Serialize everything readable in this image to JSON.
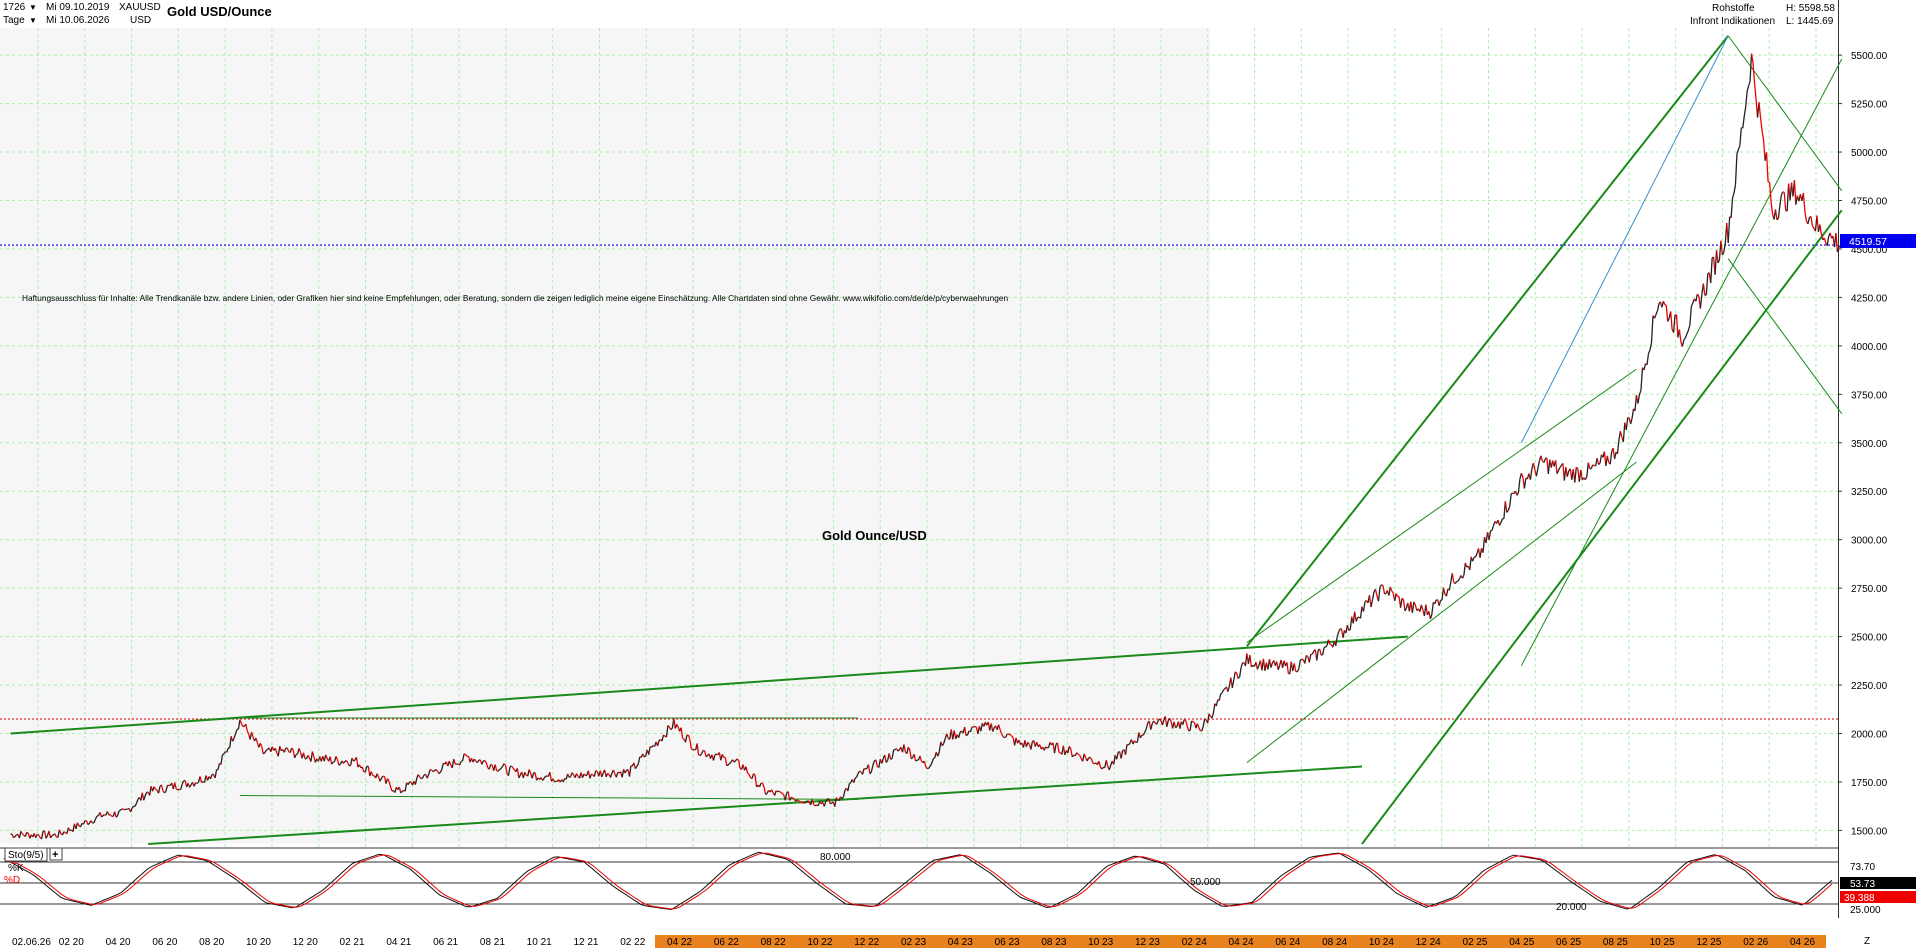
{
  "header": {
    "bars": "1726",
    "start_date": "Mi 09.10.2019",
    "symbol": "XAUUSD",
    "period": "Tage",
    "end_date": "Mi 10.06.2026",
    "currency": "USD",
    "title": "Gold USD/Ounce",
    "category": "Rohstoffe",
    "high_label": "H: 5598.58",
    "source": "Infront Indikationen",
    "low_label": "L: 1445.69"
  },
  "disclaimer": "Haftungsausschluss für Inhalte: Alle Trendkanäle bzw. andere Linien, oder Grafiken hier sind keine Empfehlungen, oder Beratung, sondern die zeigen lediglich meine eigene Einschätzung. Alle Chartdaten sind ohne Gewähr. www.wikifolio.com/de/de/p/cyberwaehrungen",
  "center_label": "Gold Ounce/USD",
  "price_tag": "4519.57",
  "colors": {
    "up": "#222222",
    "down": "#ee0000",
    "trend": "#1a8a1a",
    "price_tag_bg": "#0000ee",
    "ref_line": "#e03030",
    "grid": "#a8f0a8",
    "date_band": "#e8821e"
  },
  "chart_data": {
    "type": "line",
    "y_axis_ticks": [
      1500,
      1750,
      2000,
      2250,
      2500,
      2750,
      3000,
      3250,
      3500,
      3750,
      4000,
      4250,
      4500,
      4750,
      5000,
      5250,
      5500
    ],
    "y_axis_labels": [
      "1500.00",
      "1750.00",
      "2000.00",
      "2250.00",
      "2500.00",
      "2750.00",
      "3000.00",
      "3250.00",
      "3500.00",
      "3750.00",
      "4000.00",
      "4250.00",
      "4500.00",
      "4750.00",
      "5000.00",
      "5250.00",
      "5500.00"
    ],
    "ylim": [
      1430,
      5640
    ],
    "log_scale": false,
    "x_tick_labels": [
      "02.06.26",
      "02 20",
      "04 20",
      "06 20",
      "08 20",
      "10 20",
      "12 20",
      "02 21",
      "04 21",
      "06 21",
      "08 21",
      "10 21",
      "12 21",
      "02 22",
      "04 22",
      "06 22",
      "08 22",
      "10 22",
      "12 22",
      "02 23",
      "04 23",
      "06 23",
      "08 23",
      "10 23",
      "12 23",
      "02 24",
      "04 24",
      "06 24",
      "08 24",
      "10 24",
      "12 24",
      "02 25",
      "04 25",
      "06 25",
      "08 25",
      "10 25",
      "12 25",
      "02 26",
      "04 26"
    ],
    "x": [
      "2019-10",
      "2019-12",
      "2020-02",
      "2020-03",
      "2020-04",
      "2020-06",
      "2020-07",
      "2020-08",
      "2020-09",
      "2020-10",
      "2020-12",
      "2021-01",
      "2021-03",
      "2021-04",
      "2021-06",
      "2021-08",
      "2021-10",
      "2021-12",
      "2022-01",
      "2022-03",
      "2022-04",
      "2022-06",
      "2022-07",
      "2022-09",
      "2022-10",
      "2022-11",
      "2023-01",
      "2023-02",
      "2023-03",
      "2023-05",
      "2023-06",
      "2023-08",
      "2023-10",
      "2023-12",
      "2024-01",
      "2024-02",
      "2024-03",
      "2024-04",
      "2024-05",
      "2024-06",
      "2024-07",
      "2024-08",
      "2024-09",
      "2024-10",
      "2024-11",
      "2024-12",
      "2025-01",
      "2025-02",
      "2025-03",
      "2025-04",
      "2025-05",
      "2025-06",
      "2025-07",
      "2025-08",
      "2025-09",
      "2025-10",
      "2025-11",
      "2025-12",
      "2026-01",
      "2026-02",
      "2026-03",
      "2026-04",
      "2026-05",
      "2026-06"
    ],
    "series": [
      {
        "values": [
          1480,
          1475,
          1580,
          1590,
          1700,
          1750,
          1800,
          2065,
          1900,
          1910,
          1860,
          1860,
          1700,
          1780,
          1880,
          1800,
          1770,
          1800,
          1800,
          2050,
          1920,
          1830,
          1700,
          1650,
          1640,
          1780,
          1930,
          1830,
          1990,
          2040,
          1950,
          1920,
          1830,
          2070,
          2050,
          2030,
          2200,
          2380,
          2350,
          2340,
          2400,
          2500,
          2640,
          2750,
          2650,
          2630,
          2800,
          2900,
          3100,
          3300,
          3400,
          3340,
          3350,
          3440,
          3700,
          4250,
          4050,
          4300,
          4600,
          5480,
          4700,
          4800,
          4600,
          4520
        ]
      }
    ],
    "trend_lines": [
      {
        "from": [
          "2019-10",
          2000
        ],
        "to": [
          "2024-11",
          2500
        ]
      },
      {
        "from": [
          "2020-08",
          2080
        ],
        "to": [
          "2022-11",
          2080
        ]
      },
      {
        "from": [
          "2020-08",
          1680
        ],
        "to": [
          "2022-11",
          1660
        ]
      },
      {
        "from": [
          "2020-04",
          1430
        ],
        "to": [
          "2024-09",
          1830
        ]
      },
      {
        "from": [
          "2024-04",
          2450
        ],
        "to": [
          "2026-01",
          5600
        ]
      },
      {
        "from": [
          "2024-09",
          1430
        ],
        "to": [
          "2026-06",
          4700
        ]
      },
      {
        "from": [
          "2024-04",
          1850
        ],
        "to": [
          "2025-09",
          3400
        ]
      },
      {
        "from": [
          "2024-04",
          2470
        ],
        "to": [
          "2025-09",
          3880
        ]
      },
      {
        "from": [
          "2025-04",
          2350
        ],
        "to": [
          "2026-06",
          5480
        ]
      },
      {
        "from": [
          "2025-04",
          3500
        ],
        "to": [
          "2026-01",
          5600
        ]
      },
      {
        "from": [
          "2026-01",
          5600
        ],
        "to": [
          "2026-06",
          4800
        ]
      },
      {
        "from": [
          "2026-01",
          4450
        ],
        "to": [
          "2026-06",
          3650
        ]
      }
    ],
    "ref_levels": [
      {
        "value": 2075,
        "color": "#e03030",
        "style": "dotted"
      },
      {
        "value": 4520,
        "color": "#0000ee",
        "style": "dotted"
      }
    ],
    "stochastic": {
      "label": "Sto(9/5)",
      "k_label": "%K",
      "d_label": "%D",
      "levels": [
        "80.000",
        "50.000",
        "20.000"
      ],
      "level_values": [
        80,
        50,
        20
      ],
      "ylim": [
        0,
        100
      ],
      "axis_labels": [
        "73.70",
        "25.000"
      ],
      "k_value": "53.73",
      "d_value": "39.388",
      "k_series": [
        85,
        62,
        28,
        18,
        35,
        72,
        90,
        82,
        55,
        22,
        14,
        40,
        78,
        92,
        70,
        33,
        15,
        28,
        66,
        88,
        80,
        45,
        18,
        12,
        38,
        76,
        94,
        84,
        50,
        20,
        16,
        48,
        82,
        91,
        64,
        30,
        14,
        35,
        74,
        89,
        77,
        40,
        16,
        22,
        60,
        87,
        93,
        70,
        35,
        15,
        30,
        68,
        90,
        83,
        52,
        24,
        12,
        42,
        80,
        91,
        68,
        30,
        18,
        54
      ]
    }
  }
}
